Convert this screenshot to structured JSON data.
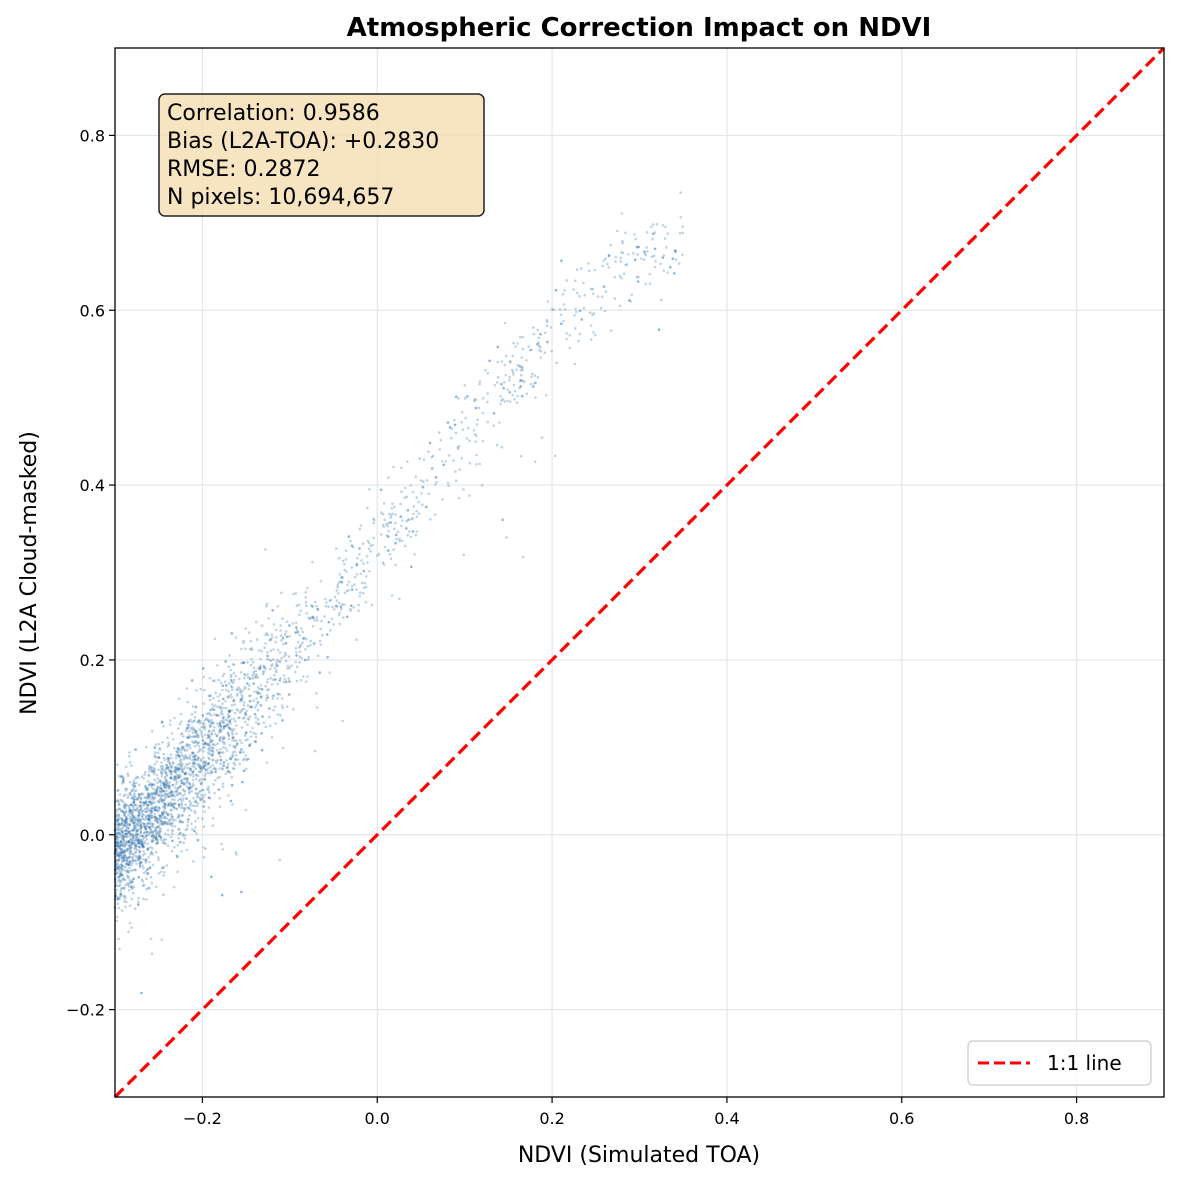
{
  "chart_data": {
    "type": "scatter",
    "title": "Atmospheric Correction Impact on NDVI",
    "xlabel": "NDVI (Simulated TOA)",
    "ylabel": "NDVI (L2A Cloud-masked)",
    "xlim": [
      -0.3,
      0.9
    ],
    "ylim": [
      -0.3,
      0.9
    ],
    "x_ticks": [
      -0.2,
      0.0,
      0.2,
      0.4,
      0.6,
      0.8
    ],
    "x_tick_labels": [
      "−0.2",
      "0.0",
      "0.2",
      "0.4",
      "0.6",
      "0.8"
    ],
    "y_ticks": [
      -0.2,
      0.0,
      0.2,
      0.4,
      0.6,
      0.8
    ],
    "y_tick_labels": [
      "−0.2",
      "0.0",
      "0.2",
      "0.4",
      "0.6",
      "0.8"
    ],
    "grid": true,
    "point_color": "#4682b4",
    "series": [
      {
        "name": "pixels",
        "description_points": "dense point cloud following relation y ≈ 0.9x + 0.29 with spread",
        "trend": [
          {
            "x": -0.3,
            "y": -0.02
          },
          {
            "x": -0.2,
            "y": 0.09
          },
          {
            "x": -0.1,
            "y": 0.21
          },
          {
            "x": 0.0,
            "y": 0.33
          },
          {
            "x": 0.1,
            "y": 0.46
          },
          {
            "x": 0.2,
            "y": 0.58
          },
          {
            "x": 0.3,
            "y": 0.66
          },
          {
            "x": 0.35,
            "y": 0.69
          }
        ]
      }
    ],
    "reference_line": {
      "name": "1:1 line",
      "color": "#ff0000",
      "style": "dashed",
      "points": [
        {
          "x": -0.3,
          "y": -0.3
        },
        {
          "x": 0.9,
          "y": 0.9
        }
      ]
    },
    "legend": {
      "position": "bottom-right",
      "entries": [
        "1:1 line"
      ]
    },
    "stats_box": {
      "lines": [
        "Correlation: 0.9586",
        "Bias (L2A-TOA): +0.2830",
        "RMSE: 0.2872",
        "N pixels: 10,694,657"
      ],
      "background": "#f5deb3"
    }
  }
}
